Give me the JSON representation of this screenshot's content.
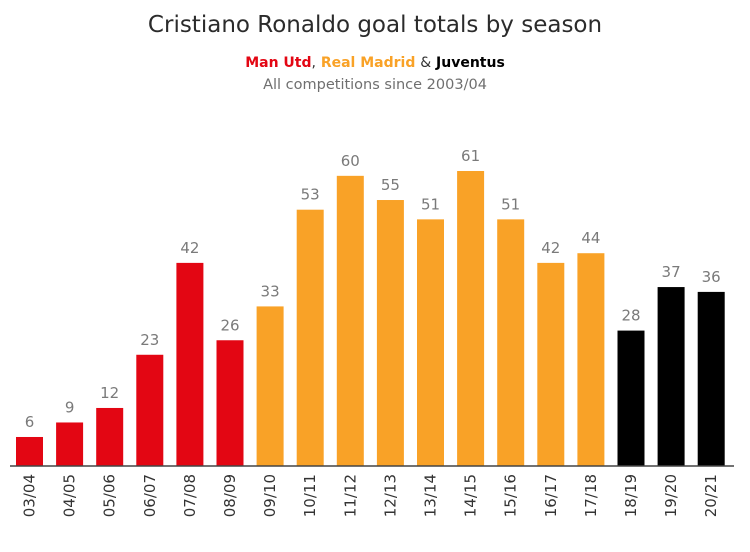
{
  "title": "Cristiano Ronaldo goal totals by season",
  "legend": {
    "man_utd": "Man Utd",
    "comma": ",",
    "real_madrid": "Real Madrid",
    "amp": "&",
    "juventus": "Juventus"
  },
  "subtitle": "All competitions since 2003/04",
  "colors": {
    "Man Utd": "#e30613",
    "Real Madrid": "#f9a227",
    "Juventus": "#000000",
    "axis": "#444444",
    "value_label": "#7a7a7a",
    "tick_label": "#333333"
  },
  "chart_data": {
    "type": "bar",
    "title": "Cristiano Ronaldo goal totals by season",
    "xlabel": "",
    "ylabel": "",
    "ylim": [
      0,
      61
    ],
    "grid": false,
    "categories": [
      "03/04",
      "04/05",
      "05/06",
      "06/07",
      "07/08",
      "08/09",
      "09/10",
      "10/11",
      "11/12",
      "12/13",
      "13/14",
      "14/15",
      "15/16",
      "16/17",
      "17/18",
      "18/19",
      "19/20",
      "20/21"
    ],
    "values": [
      6,
      9,
      12,
      23,
      42,
      26,
      33,
      53,
      60,
      55,
      51,
      61,
      51,
      42,
      44,
      28,
      37,
      36
    ],
    "clubs": [
      "Man Utd",
      "Man Utd",
      "Man Utd",
      "Man Utd",
      "Man Utd",
      "Man Utd",
      "Real Madrid",
      "Real Madrid",
      "Real Madrid",
      "Real Madrid",
      "Real Madrid",
      "Real Madrid",
      "Real Madrid",
      "Real Madrid",
      "Real Madrid",
      "Juventus",
      "Juventus",
      "Juventus"
    ]
  }
}
